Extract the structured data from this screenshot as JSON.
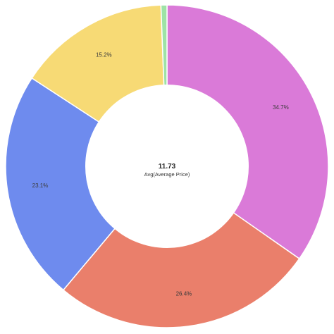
{
  "chart_data": {
    "type": "pie",
    "donut": true,
    "center": {
      "value": "11.73",
      "label": "Avg(Average Price)"
    },
    "slices": [
      {
        "value": 34.7,
        "label": "34.7%",
        "color": "#DA7AD8"
      },
      {
        "value": 26.4,
        "label": "26.4%",
        "color": "#EA7F6B"
      },
      {
        "value": 23.1,
        "label": "23.1%",
        "color": "#6E8BEE"
      },
      {
        "value": 15.2,
        "label": "15.2%",
        "color": "#F7DA75"
      },
      {
        "value": 0.6,
        "label": "",
        "color": "#9EE3A6"
      }
    ]
  }
}
